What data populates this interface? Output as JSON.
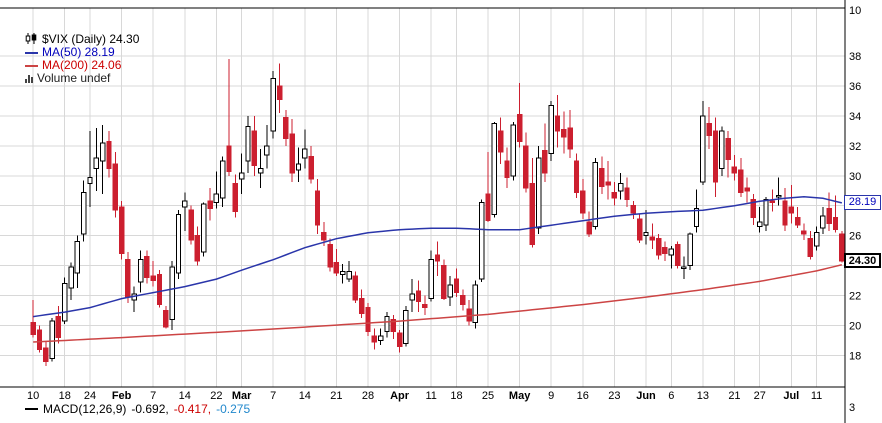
{
  "legend": {
    "symbol_row": "$VIX (Daily) 24.30",
    "ma50_row": "MA(50) 28.19",
    "ma200_row": "MA(200) 24.06",
    "volume_row": "Volume undef"
  },
  "price_boxes": {
    "ma50": "28.19",
    "last": "24.30"
  },
  "macd": {
    "label": "MACD(12,26,9)",
    "value1": "-0.692,",
    "value2": "-0.417,",
    "value3": "-0.275"
  },
  "axis": {
    "top_adjacent_tick": "10",
    "bottom_adjacent_tick": "3"
  },
  "colors": {
    "candle_up": "#000000",
    "candle_up_fill": "#ffffff",
    "candle_down": "#cc1f2f",
    "ma50": "#2a35aa",
    "ma200": "#cc4444",
    "grid": "#d8d8d8",
    "axis_text": "#000000",
    "border": "#000000",
    "legend_ma50_text": "#0000bb",
    "legend_ma200_text": "#cc0000",
    "macd_value_colors": [
      "#000000",
      "#cc0000",
      "#2288cc"
    ]
  },
  "chart_data": {
    "type": "candlestick",
    "title": "$VIX (Daily) 24.30",
    "symbol": "$VIX",
    "timeframe": "Daily",
    "last_price": 24.3,
    "ylim": [
      15.9,
      41.2
    ],
    "y_ticks": [
      18,
      20,
      22,
      24,
      26,
      28,
      30,
      32,
      34,
      36,
      38
    ],
    "x_tick_labels": [
      "10",
      "18",
      "24",
      "Feb",
      "7",
      "14",
      "22",
      "Mar",
      "7",
      "14",
      "21",
      "28",
      "Apr",
      "11",
      "18",
      "25",
      "May",
      "9",
      "16",
      "23",
      "Jun",
      "6",
      "13",
      "21",
      "27",
      "Jul",
      "11"
    ],
    "x_tick_indices": [
      0,
      5,
      9,
      14,
      19,
      24,
      29,
      33,
      38,
      43,
      48,
      53,
      58,
      63,
      67,
      72,
      77,
      82,
      87,
      92,
      97,
      101,
      106,
      111,
      115,
      120,
      124
    ],
    "grid": true,
    "legend_entries": [
      "MA(50) 28.19",
      "MA(200) 24.06",
      "Volume undef"
    ],
    "volume": "undef",
    "macd_label": "MACD(12,26,9)",
    "macd_values": [
      -0.692,
      -0.417,
      -0.275
    ],
    "ma50": {
      "period": 50,
      "value": 28.19,
      "anchors": [
        [
          0,
          20.6
        ],
        [
          5,
          20.9
        ],
        [
          9,
          21.2
        ],
        [
          14,
          21.8
        ],
        [
          19,
          22.2
        ],
        [
          24,
          22.6
        ],
        [
          29,
          23.1
        ],
        [
          33,
          23.7
        ],
        [
          38,
          24.4
        ],
        [
          43,
          25.2
        ],
        [
          48,
          25.8
        ],
        [
          53,
          26.2
        ],
        [
          58,
          26.4
        ],
        [
          63,
          26.5
        ],
        [
          67,
          26.5
        ],
        [
          72,
          26.4
        ],
        [
          77,
          26.4
        ],
        [
          82,
          26.7
        ],
        [
          87,
          27.0
        ],
        [
          92,
          27.3
        ],
        [
          97,
          27.5
        ],
        [
          101,
          27.6
        ],
        [
          106,
          27.7
        ],
        [
          111,
          28.0
        ],
        [
          115,
          28.3
        ],
        [
          119,
          28.5
        ],
        [
          122,
          28.6
        ],
        [
          125,
          28.5
        ],
        [
          128,
          28.19
        ]
      ]
    },
    "ma200": {
      "period": 200,
      "value": 24.06,
      "anchors": [
        [
          0,
          18.9
        ],
        [
          14,
          19.2
        ],
        [
          29,
          19.55
        ],
        [
          43,
          19.9
        ],
        [
          58,
          20.3
        ],
        [
          72,
          20.75
        ],
        [
          87,
          21.4
        ],
        [
          97,
          21.9
        ],
        [
          106,
          22.4
        ],
        [
          115,
          22.95
        ],
        [
          124,
          23.65
        ],
        [
          128,
          24.06
        ]
      ]
    },
    "candles": [
      [
        20.2,
        21.7,
        19.2,
        19.4
      ],
      [
        19.7,
        20.0,
        18.2,
        18.4
      ],
      [
        18.5,
        18.9,
        17.3,
        17.6
      ],
      [
        17.8,
        20.5,
        17.6,
        20.3
      ],
      [
        20.6,
        21.3,
        18.8,
        19.2
      ],
      [
        20.3,
        23.2,
        20.1,
        22.8
      ],
      [
        22.5,
        24.2,
        21.7,
        23.9
      ],
      [
        23.5,
        26.0,
        22.5,
        25.6
      ],
      [
        26.1,
        29.7,
        25.6,
        28.9
      ],
      [
        29.5,
        33.0,
        27.9,
        29.9
      ],
      [
        30.5,
        33.2,
        29.0,
        31.2
      ],
      [
        31.0,
        33.4,
        28.8,
        32.2
      ],
      [
        32.3,
        33.0,
        29.9,
        30.5
      ],
      [
        30.8,
        31.6,
        27.2,
        27.7
      ],
      [
        27.9,
        28.3,
        24.4,
        24.8
      ],
      [
        24.4,
        24.9,
        21.5,
        21.9
      ],
      [
        21.7,
        22.6,
        20.9,
        22.1
      ],
      [
        22.9,
        25.0,
        22.2,
        24.4
      ],
      [
        24.6,
        25.0,
        22.8,
        23.2
      ],
      [
        23.3,
        24.3,
        22.6,
        23.0
      ],
      [
        23.4,
        23.7,
        21.2,
        21.4
      ],
      [
        21.0,
        21.3,
        19.8,
        19.9
      ],
      [
        20.4,
        24.3,
        19.7,
        23.9
      ],
      [
        23.5,
        27.7,
        23.1,
        27.4
      ],
      [
        27.9,
        28.9,
        26.3,
        28.3
      ],
      [
        27.7,
        28.0,
        25.4,
        25.7
      ],
      [
        26.0,
        26.6,
        24.0,
        24.3
      ],
      [
        24.9,
        28.2,
        24.6,
        28.1
      ],
      [
        28.3,
        29.2,
        27.0,
        27.8
      ],
      [
        28.2,
        30.3,
        27.8,
        28.8
      ],
      [
        28.5,
        31.3,
        27.9,
        31.0
      ],
      [
        32.0,
        37.8,
        30.0,
        30.3
      ],
      [
        29.5,
        30.1,
        27.2,
        27.6
      ],
      [
        29.8,
        31.5,
        28.8,
        30.2
      ],
      [
        31.0,
        34.0,
        30.2,
        33.3
      ],
      [
        33.0,
        34.0,
        30.0,
        30.7
      ],
      [
        30.2,
        31.8,
        29.2,
        30.5
      ],
      [
        31.4,
        33.4,
        30.5,
        32.0
      ],
      [
        33.0,
        37.0,
        32.5,
        36.5
      ],
      [
        36.0,
        37.5,
        34.2,
        35.1
      ],
      [
        33.9,
        34.4,
        32.0,
        32.5
      ],
      [
        32.8,
        33.8,
        29.6,
        30.2
      ],
      [
        30.4,
        31.9,
        29.6,
        30.8
      ],
      [
        31.2,
        33.1,
        30.5,
        31.8
      ],
      [
        31.3,
        32.0,
        29.5,
        29.8
      ],
      [
        29.0,
        29.8,
        26.1,
        26.7
      ],
      [
        26.2,
        26.9,
        25.3,
        25.7
      ],
      [
        25.4,
        25.8,
        23.6,
        23.9
      ],
      [
        24.2,
        25.1,
        23.3,
        23.5
      ],
      [
        23.4,
        24.1,
        22.8,
        23.6
      ],
      [
        23.1,
        24.3,
        22.9,
        23.6
      ],
      [
        23.3,
        23.6,
        21.5,
        21.7
      ],
      [
        21.8,
        22.4,
        20.5,
        20.8
      ],
      [
        21.2,
        21.5,
        19.3,
        19.6
      ],
      [
        19.3,
        19.8,
        18.4,
        18.9
      ],
      [
        19.0,
        19.8,
        18.7,
        19.3
      ],
      [
        19.6,
        20.9,
        19.2,
        20.6
      ],
      [
        20.4,
        20.7,
        19.1,
        19.6
      ],
      [
        19.5,
        19.7,
        18.2,
        18.6
      ],
      [
        18.8,
        21.3,
        18.6,
        21.0
      ],
      [
        21.7,
        23.1,
        20.9,
        22.1
      ],
      [
        22.3,
        23.0,
        20.9,
        21.6
      ],
      [
        21.4,
        22.0,
        20.7,
        21.2
      ],
      [
        21.8,
        25.0,
        21.6,
        24.4
      ],
      [
        24.7,
        25.6,
        23.3,
        24.3
      ],
      [
        24.0,
        24.4,
        21.7,
        21.8
      ],
      [
        21.9,
        23.3,
        21.3,
        22.7
      ],
      [
        23.1,
        23.8,
        21.9,
        22.2
      ],
      [
        22.0,
        22.4,
        21.0,
        21.4
      ],
      [
        21.1,
        21.7,
        20.0,
        20.3
      ],
      [
        20.2,
        23.0,
        19.8,
        22.7
      ],
      [
        23.1,
        28.4,
        22.9,
        28.2
      ],
      [
        28.8,
        31.6,
        26.9,
        27.0
      ],
      [
        27.4,
        33.6,
        27.2,
        33.5
      ],
      [
        33.0,
        33.9,
        30.8,
        31.6
      ],
      [
        31.0,
        31.9,
        29.2,
        29.9
      ],
      [
        30.0,
        33.6,
        29.7,
        33.4
      ],
      [
        34.1,
        36.2,
        31.9,
        32.3
      ],
      [
        32.0,
        32.9,
        28.9,
        29.2
      ],
      [
        29.5,
        31.2,
        25.2,
        25.4
      ],
      [
        26.5,
        32.0,
        26.1,
        31.2
      ],
      [
        31.7,
        33.5,
        29.6,
        30.2
      ],
      [
        31.5,
        35.0,
        31.0,
        34.7
      ],
      [
        34.0,
        35.4,
        31.9,
        33.0
      ],
      [
        33.1,
        34.3,
        31.5,
        32.6
      ],
      [
        33.2,
        34.4,
        31.2,
        31.8
      ],
      [
        31.0,
        31.5,
        28.5,
        28.9
      ],
      [
        29.0,
        29.8,
        27.1,
        27.5
      ],
      [
        26.9,
        27.6,
        25.9,
        26.1
      ],
      [
        26.6,
        31.2,
        26.4,
        30.9
      ],
      [
        30.5,
        31.3,
        28.8,
        29.3
      ],
      [
        29.6,
        31.0,
        28.4,
        29.4
      ],
      [
        28.9,
        29.6,
        28.0,
        28.5
      ],
      [
        29.0,
        30.2,
        28.4,
        29.5
      ],
      [
        29.2,
        29.9,
        27.9,
        28.4
      ],
      [
        28.0,
        28.3,
        27.1,
        27.5
      ],
      [
        27.1,
        27.4,
        25.5,
        25.7
      ],
      [
        26.0,
        27.7,
        25.4,
        26.2
      ],
      [
        25.9,
        26.8,
        25.1,
        25.7
      ],
      [
        25.8,
        26.1,
        24.4,
        24.7
      ],
      [
        25.2,
        25.6,
        24.3,
        24.8
      ],
      [
        24.7,
        25.3,
        23.8,
        25.1
      ],
      [
        25.4,
        25.6,
        23.8,
        24.0
      ],
      [
        23.8,
        24.6,
        23.1,
        23.9
      ],
      [
        24.0,
        26.2,
        23.7,
        26.1
      ],
      [
        26.6,
        29.1,
        26.2,
        27.8
      ],
      [
        29.6,
        35.0,
        29.4,
        34.0
      ],
      [
        33.5,
        34.6,
        31.8,
        32.7
      ],
      [
        33.0,
        33.9,
        28.6,
        29.6
      ],
      [
        30.5,
        33.3,
        30.0,
        33.0
      ],
      [
        32.5,
        33.0,
        29.9,
        31.1
      ],
      [
        30.6,
        31.4,
        29.7,
        30.2
      ],
      [
        30.4,
        31.2,
        28.6,
        28.9
      ],
      [
        29.2,
        29.9,
        28.2,
        29.0
      ],
      [
        28.4,
        28.8,
        26.7,
        27.2
      ],
      [
        26.6,
        27.9,
        26.2,
        26.9
      ],
      [
        26.7,
        28.6,
        26.3,
        28.4
      ],
      [
        28.3,
        29.1,
        27.6,
        28.2
      ],
      [
        28.6,
        29.9,
        28.0,
        28.7
      ],
      [
        28.3,
        29.2,
        26.3,
        26.7
      ],
      [
        27.9,
        29.4,
        26.8,
        27.5
      ],
      [
        27.2,
        27.9,
        26.5,
        26.7
      ],
      [
        26.3,
        26.8,
        25.7,
        26.1
      ],
      [
        25.8,
        26.3,
        24.4,
        24.6
      ],
      [
        25.3,
        26.6,
        25.0,
        26.2
      ],
      [
        26.5,
        27.9,
        26.1,
        27.3
      ],
      [
        27.8,
        28.9,
        26.3,
        26.8
      ],
      [
        27.2,
        28.7,
        26.2,
        26.4
      ],
      [
        26.1,
        26.3,
        24.2,
        24.3
      ]
    ]
  }
}
